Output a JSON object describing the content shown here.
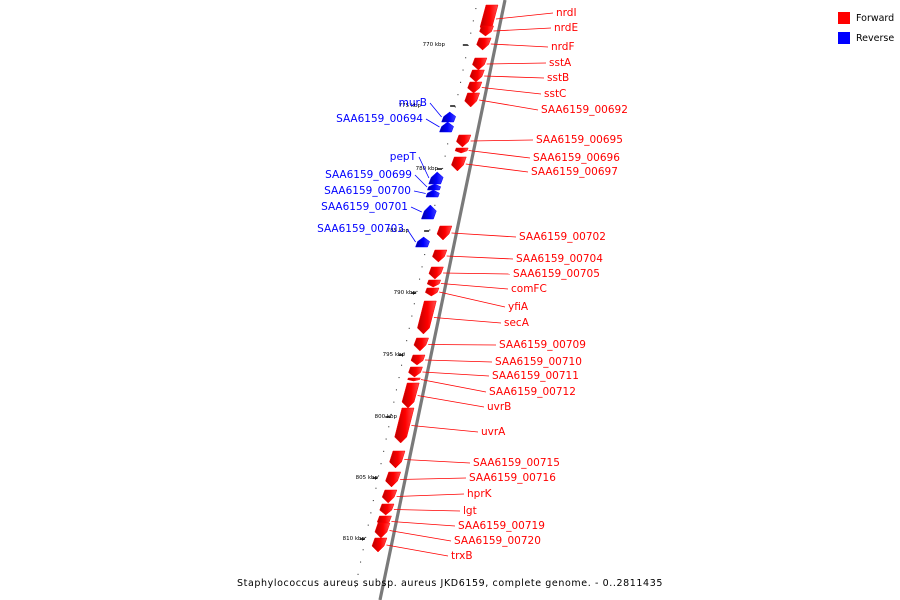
{
  "legend": {
    "forward": {
      "label": "Forward",
      "color": "#ff0000"
    },
    "reverse": {
      "label": "Reverse",
      "color": "#0000ff"
    }
  },
  "caption": "Staphylococcus aureus subsp. aureus JKD6159, complete genome. - 0..2811435",
  "scale_labels": [
    "770 kbp",
    "775 kbp",
    "780 kbp",
    "785 kbp",
    "790 kbp",
    "795 kbp",
    "800 kbp",
    "805 kbp",
    "810 kbp"
  ],
  "genes": [
    {
      "name": "nrdI",
      "strand": "forward"
    },
    {
      "name": "nrdE",
      "strand": "forward"
    },
    {
      "name": "nrdF",
      "strand": "forward"
    },
    {
      "name": "sstA",
      "strand": "forward"
    },
    {
      "name": "sstB",
      "strand": "forward"
    },
    {
      "name": "sstC",
      "strand": "forward"
    },
    {
      "name": "SAA6159_00692",
      "strand": "forward"
    },
    {
      "name": "murB",
      "strand": "reverse"
    },
    {
      "name": "SAA6159_00694",
      "strand": "reverse"
    },
    {
      "name": "SAA6159_00695",
      "strand": "forward"
    },
    {
      "name": "SAA6159_00696",
      "strand": "forward"
    },
    {
      "name": "SAA6159_00697",
      "strand": "forward"
    },
    {
      "name": "pepT",
      "strand": "reverse"
    },
    {
      "name": "SAA6159_00699",
      "strand": "reverse"
    },
    {
      "name": "SAA6159_00700",
      "strand": "reverse"
    },
    {
      "name": "SAA6159_00701",
      "strand": "reverse"
    },
    {
      "name": "SAA6159_00702",
      "strand": "forward"
    },
    {
      "name": "SAA6159_00703",
      "strand": "reverse"
    },
    {
      "name": "SAA6159_00704",
      "strand": "forward"
    },
    {
      "name": "SAA6159_00705",
      "strand": "forward"
    },
    {
      "name": "comFC",
      "strand": "forward"
    },
    {
      "name": "yfiA",
      "strand": "forward"
    },
    {
      "name": "secA",
      "strand": "forward"
    },
    {
      "name": "SAA6159_00709",
      "strand": "forward"
    },
    {
      "name": "SAA6159_00710",
      "strand": "forward"
    },
    {
      "name": "SAA6159_00711",
      "strand": "forward"
    },
    {
      "name": "SAA6159_00712",
      "strand": "forward"
    },
    {
      "name": "uvrB",
      "strand": "forward"
    },
    {
      "name": "uvrA",
      "strand": "forward"
    },
    {
      "name": "SAA6159_00715",
      "strand": "forward"
    },
    {
      "name": "SAA6159_00716",
      "strand": "forward"
    },
    {
      "name": "hprK",
      "strand": "forward"
    },
    {
      "name": "lgt",
      "strand": "forward"
    },
    {
      "name": "SAA6159_00719",
      "strand": "forward"
    },
    {
      "name": "SAA6159_00720",
      "strand": "forward"
    },
    {
      "name": "trxB",
      "strand": "forward"
    }
  ]
}
